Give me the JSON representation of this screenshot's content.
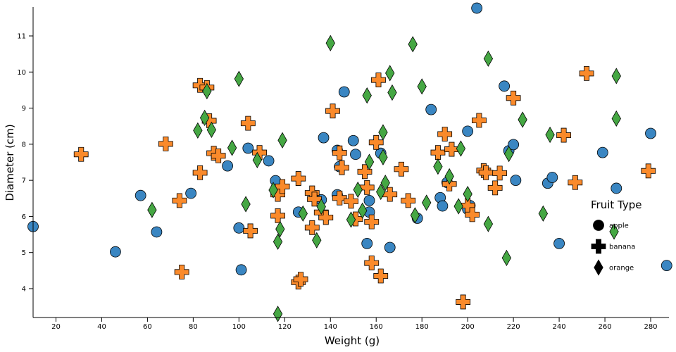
{
  "chart_data": {
    "type": "scatter",
    "xlabel": "Weight (g)",
    "ylabel": "Diameter (cm)",
    "xlim": [
      10,
      288
    ],
    "ylim": [
      3.2,
      11.8
    ],
    "x_ticks": [
      "20",
      "40",
      "60",
      "80",
      "100",
      "120",
      "140",
      "160",
      "180",
      "200",
      "220",
      "240",
      "260",
      "280"
    ],
    "y_ticks": [
      "4",
      "5",
      "6",
      "7",
      "8",
      "9",
      "10",
      "11"
    ],
    "legend": {
      "title": "Fruit Type",
      "placement": "right",
      "entries": [
        {
          "label": "apple",
          "shape": "circle"
        },
        {
          "label": "banana",
          "shape": "cross"
        },
        {
          "label": "orange",
          "shape": "diamond"
        }
      ]
    },
    "colors": {
      "apple": "#3a86c2",
      "banana": "#fa8a2b",
      "orange": "#45a743"
    },
    "series": [
      {
        "name": "apple",
        "points": [
          [
            10,
            5.72
          ],
          [
            46,
            5.02
          ],
          [
            57,
            6.58
          ],
          [
            64,
            5.57
          ],
          [
            79,
            6.64
          ],
          [
            95,
            7.4
          ],
          [
            100,
            5.68
          ],
          [
            101,
            4.52
          ],
          [
            104,
            7.89
          ],
          [
            113,
            7.54
          ],
          [
            116,
            6.99
          ],
          [
            126,
            6.12
          ],
          [
            136,
            6.46
          ],
          [
            137,
            8.18
          ],
          [
            143,
            7.83
          ],
          [
            143,
            6.6
          ],
          [
            144,
            7.38
          ],
          [
            146,
            9.45
          ],
          [
            150,
            8.1
          ],
          [
            151,
            7.72
          ],
          [
            156,
            5.25
          ],
          [
            157,
            6.44
          ],
          [
            157,
            6.12
          ],
          [
            162,
            7.75
          ],
          [
            166,
            5.14
          ],
          [
            178,
            5.95
          ],
          [
            184,
            8.96
          ],
          [
            188,
            6.52
          ],
          [
            189,
            6.29
          ],
          [
            191,
            6.94
          ],
          [
            200,
            8.36
          ],
          [
            200,
            6.2
          ],
          [
            201,
            6.3
          ],
          [
            204,
            11.77
          ],
          [
            216,
            9.61
          ],
          [
            218,
            7.82
          ],
          [
            220,
            7.99
          ],
          [
            221,
            7.0
          ],
          [
            235,
            6.92
          ],
          [
            237,
            7.08
          ],
          [
            240,
            5.25
          ],
          [
            259,
            7.77
          ],
          [
            265,
            6.78
          ],
          [
            280,
            8.3
          ],
          [
            287,
            4.64
          ]
        ]
      },
      {
        "name": "banana",
        "points": [
          [
            31,
            7.72
          ],
          [
            68,
            8.01
          ],
          [
            74,
            6.44
          ],
          [
            75,
            4.46
          ],
          [
            83,
            9.63
          ],
          [
            83,
            7.21
          ],
          [
            86,
            9.57
          ],
          [
            87,
            8.65
          ],
          [
            89,
            7.75
          ],
          [
            91,
            7.68
          ],
          [
            104,
            8.58
          ],
          [
            105,
            5.6
          ],
          [
            109,
            7.77
          ],
          [
            117,
            6.61
          ],
          [
            117,
            6.02
          ],
          [
            119,
            6.83
          ],
          [
            126,
            7.05
          ],
          [
            126,
            4.18
          ],
          [
            127,
            4.26
          ],
          [
            132,
            5.69
          ],
          [
            132,
            6.65
          ],
          [
            133,
            6.48
          ],
          [
            136,
            6.11
          ],
          [
            138,
            5.97
          ],
          [
            141,
            8.92
          ],
          [
            144,
            7.76
          ],
          [
            144,
            6.51
          ],
          [
            145,
            7.35
          ],
          [
            149,
            6.42
          ],
          [
            151,
            5.93
          ],
          [
            155,
            7.24
          ],
          [
            156,
            6.8
          ],
          [
            158,
            5.85
          ],
          [
            158,
            4.71
          ],
          [
            160,
            8.05
          ],
          [
            161,
            9.78
          ],
          [
            162,
            4.35
          ],
          [
            166,
            6.61
          ],
          [
            171,
            7.31
          ],
          [
            174,
            6.44
          ],
          [
            187,
            7.77
          ],
          [
            190,
            8.28
          ],
          [
            192,
            6.9
          ],
          [
            193,
            7.86
          ],
          [
            198,
            3.63
          ],
          [
            200,
            6.3
          ],
          [
            202,
            6.05
          ],
          [
            205,
            8.66
          ],
          [
            207,
            7.27
          ],
          [
            208,
            7.21
          ],
          [
            212,
            6.79
          ],
          [
            214,
            7.2
          ],
          [
            220,
            9.28
          ],
          [
            242,
            8.25
          ],
          [
            247,
            6.94
          ],
          [
            252,
            9.96
          ],
          [
            279,
            7.26
          ]
        ]
      },
      {
        "name": "orange",
        "points": [
          [
            62,
            6.18
          ],
          [
            82,
            8.38
          ],
          [
            85,
            8.73
          ],
          [
            86,
            9.47
          ],
          [
            88,
            8.4
          ],
          [
            97,
            7.9
          ],
          [
            100,
            9.81
          ],
          [
            103,
            6.34
          ],
          [
            108,
            7.56
          ],
          [
            115,
            6.73
          ],
          [
            117,
            5.3
          ],
          [
            117,
            3.3
          ],
          [
            118,
            5.65
          ],
          [
            119,
            8.11
          ],
          [
            128,
            6.08
          ],
          [
            134,
            5.34
          ],
          [
            136,
            6.27
          ],
          [
            140,
            10.8
          ],
          [
            149,
            5.91
          ],
          [
            152,
            6.74
          ],
          [
            154,
            6.16
          ],
          [
            156,
            9.35
          ],
          [
            157,
            7.51
          ],
          [
            162,
            6.68
          ],
          [
            163,
            8.33
          ],
          [
            163,
            7.64
          ],
          [
            164,
            6.93
          ],
          [
            166,
            9.97
          ],
          [
            167,
            9.43
          ],
          [
            176,
            10.77
          ],
          [
            177,
            6.03
          ],
          [
            180,
            9.6
          ],
          [
            182,
            6.38
          ],
          [
            187,
            7.38
          ],
          [
            192,
            7.11
          ],
          [
            196,
            6.28
          ],
          [
            197,
            7.88
          ],
          [
            200,
            6.62
          ],
          [
            209,
            5.79
          ],
          [
            209,
            10.37
          ],
          [
            217,
            4.85
          ],
          [
            218,
            7.73
          ],
          [
            224,
            8.68
          ],
          [
            233,
            6.08
          ],
          [
            236,
            8.26
          ],
          [
            264,
            5.58
          ],
          [
            265,
            9.89
          ],
          [
            265,
            8.71
          ]
        ]
      }
    ]
  }
}
